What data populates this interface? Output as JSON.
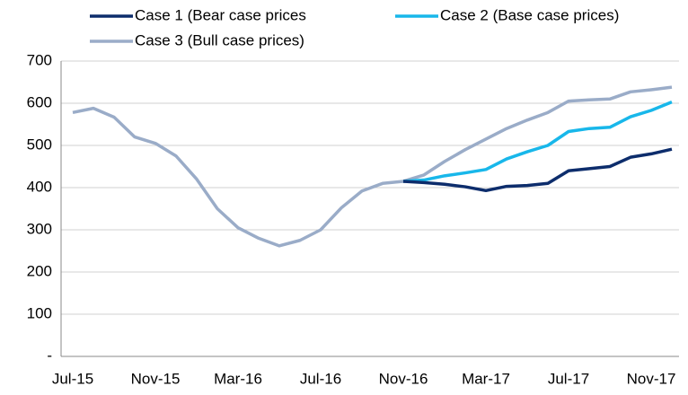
{
  "chart_data": {
    "type": "line",
    "categories": [
      "Jul-15",
      null,
      null,
      null,
      "Nov-15",
      null,
      null,
      null,
      "Mar-16",
      null,
      null,
      null,
      "Jul-16",
      null,
      null,
      null,
      "Nov-16",
      null,
      null,
      null,
      "Mar-17",
      null,
      null,
      null,
      "Jul-17",
      null,
      null,
      null,
      "Nov-17",
      null
    ],
    "series": [
      {
        "name": "Case 1 (Bear case prices",
        "color": "#0d2d6c",
        "values": [
          null,
          null,
          null,
          null,
          null,
          null,
          null,
          null,
          null,
          null,
          null,
          null,
          null,
          null,
          null,
          null,
          415,
          412,
          408,
          402,
          393,
          403,
          405,
          410,
          440,
          445,
          450,
          472,
          480,
          491
        ]
      },
      {
        "name": "Case 2 (Base case prices)",
        "color": "#18b7ea",
        "values": [
          null,
          null,
          null,
          null,
          null,
          null,
          null,
          null,
          null,
          null,
          null,
          null,
          null,
          null,
          null,
          null,
          415,
          418,
          428,
          435,
          443,
          468,
          485,
          500,
          533,
          540,
          543,
          568,
          583,
          603
        ]
      },
      {
        "name": "Case 3 (Bull case prices)",
        "color": "#9aacc8",
        "values": [
          578,
          588,
          567,
          520,
          505,
          475,
          420,
          350,
          305,
          280,
          262,
          275,
          300,
          352,
          392,
          410,
          415,
          430,
          462,
          490,
          515,
          540,
          560,
          578,
          605,
          608,
          610,
          627,
          632,
          638
        ]
      }
    ],
    "ylim": [
      0,
      700
    ],
    "yticks": [
      {
        "value": 0,
        "label": "-"
      },
      100,
      200,
      300,
      400,
      500,
      600,
      700
    ],
    "grid": true
  }
}
